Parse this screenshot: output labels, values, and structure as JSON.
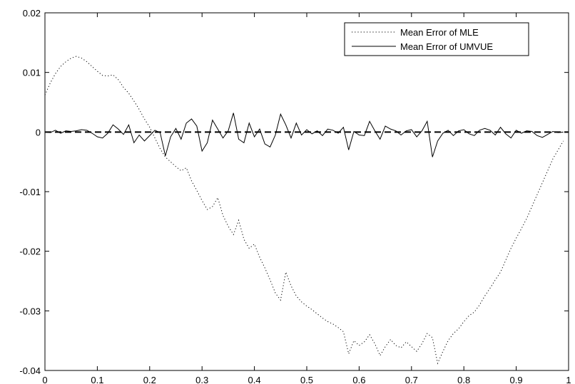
{
  "chart_data": {
    "type": "line",
    "title": "",
    "xlabel": "",
    "ylabel": "",
    "xlim": [
      0,
      1
    ],
    "ylim": [
      -0.04,
      0.02
    ],
    "xticks": [
      0,
      0.1,
      0.2,
      0.3,
      0.4,
      0.5,
      0.6,
      0.7,
      0.8,
      0.9,
      1
    ],
    "xtick_labels": [
      "0",
      "0.1",
      "0.2",
      "0.3",
      "0.4",
      "0.5",
      "0.6",
      "0.7",
      "0.8",
      "0.9",
      "1"
    ],
    "yticks": [
      0.02,
      0.01,
      0,
      -0.01,
      -0.02,
      -0.03,
      -0.04
    ],
    "ytick_labels": [
      "0.02",
      "0.01",
      "0",
      "-0.01",
      "-0.02",
      "-0.03",
      "-0.04"
    ],
    "grid": false,
    "legend_position": "top-right",
    "series": [
      {
        "name": "Mean Error of MLE",
        "style": "dotted",
        "color": "#000000",
        "points": [
          [
            0.0,
            0.0062
          ],
          [
            0.01,
            0.0082
          ],
          [
            0.02,
            0.0098
          ],
          [
            0.03,
            0.011
          ],
          [
            0.04,
            0.0118
          ],
          [
            0.05,
            0.0124
          ],
          [
            0.06,
            0.0127
          ],
          [
            0.07,
            0.0124
          ],
          [
            0.08,
            0.0118
          ],
          [
            0.09,
            0.011
          ],
          [
            0.1,
            0.0102
          ],
          [
            0.11,
            0.0095
          ],
          [
            0.12,
            0.0094
          ],
          [
            0.13,
            0.0096
          ],
          [
            0.14,
            0.0088
          ],
          [
            0.15,
            0.0075
          ],
          [
            0.16,
            0.0065
          ],
          [
            0.17,
            0.0052
          ],
          [
            0.18,
            0.0038
          ],
          [
            0.19,
            0.0022
          ],
          [
            0.2,
            0.0008
          ],
          [
            0.21,
            -0.001
          ],
          [
            0.22,
            -0.0028
          ],
          [
            0.23,
            -0.0042
          ],
          [
            0.24,
            -0.005
          ],
          [
            0.25,
            -0.0058
          ],
          [
            0.26,
            -0.0065
          ],
          [
            0.27,
            -0.006
          ],
          [
            0.28,
            -0.0082
          ],
          [
            0.29,
            -0.0098
          ],
          [
            0.3,
            -0.0115
          ],
          [
            0.31,
            -0.013
          ],
          [
            0.32,
            -0.0125
          ],
          [
            0.33,
            -0.011
          ],
          [
            0.34,
            -0.014
          ],
          [
            0.35,
            -0.0158
          ],
          [
            0.36,
            -0.0172
          ],
          [
            0.37,
            -0.0148
          ],
          [
            0.38,
            -0.018
          ],
          [
            0.39,
            -0.0195
          ],
          [
            0.4,
            -0.0188
          ],
          [
            0.41,
            -0.021
          ],
          [
            0.42,
            -0.0228
          ],
          [
            0.43,
            -0.0248
          ],
          [
            0.44,
            -0.027
          ],
          [
            0.45,
            -0.0282
          ],
          [
            0.46,
            -0.0235
          ],
          [
            0.47,
            -0.0258
          ],
          [
            0.48,
            -0.0275
          ],
          [
            0.49,
            -0.0285
          ],
          [
            0.5,
            -0.0292
          ],
          [
            0.51,
            -0.0298
          ],
          [
            0.52,
            -0.0305
          ],
          [
            0.53,
            -0.0312
          ],
          [
            0.54,
            -0.0318
          ],
          [
            0.55,
            -0.0322
          ],
          [
            0.56,
            -0.0328
          ],
          [
            0.57,
            -0.0335
          ],
          [
            0.58,
            -0.0372
          ],
          [
            0.59,
            -0.035
          ],
          [
            0.6,
            -0.0358
          ],
          [
            0.61,
            -0.0352
          ],
          [
            0.62,
            -0.034
          ],
          [
            0.63,
            -0.0355
          ],
          [
            0.64,
            -0.0375
          ],
          [
            0.65,
            -0.036
          ],
          [
            0.66,
            -0.0348
          ],
          [
            0.67,
            -0.0358
          ],
          [
            0.68,
            -0.0362
          ],
          [
            0.69,
            -0.0352
          ],
          [
            0.7,
            -0.036
          ],
          [
            0.71,
            -0.0368
          ],
          [
            0.72,
            -0.0355
          ],
          [
            0.73,
            -0.0338
          ],
          [
            0.74,
            -0.0345
          ],
          [
            0.75,
            -0.0388
          ],
          [
            0.76,
            -0.0368
          ],
          [
            0.77,
            -0.035
          ],
          [
            0.78,
            -0.0338
          ],
          [
            0.79,
            -0.033
          ],
          [
            0.8,
            -0.0318
          ],
          [
            0.81,
            -0.0308
          ],
          [
            0.82,
            -0.0302
          ],
          [
            0.83,
            -0.029
          ],
          [
            0.84,
            -0.0275
          ],
          [
            0.85,
            -0.0262
          ],
          [
            0.86,
            -0.0248
          ],
          [
            0.87,
            -0.0235
          ],
          [
            0.88,
            -0.0215
          ],
          [
            0.89,
            -0.0195
          ],
          [
            0.9,
            -0.0178
          ],
          [
            0.91,
            -0.0162
          ],
          [
            0.92,
            -0.0145
          ],
          [
            0.93,
            -0.0125
          ],
          [
            0.94,
            -0.0105
          ],
          [
            0.95,
            -0.0085
          ],
          [
            0.96,
            -0.0065
          ],
          [
            0.97,
            -0.0045
          ],
          [
            0.98,
            -0.003
          ],
          [
            0.99,
            -0.0015
          ]
        ]
      },
      {
        "name": "Mean Error of UMVUE",
        "style": "solid",
        "color": "#000000",
        "points": [
          [
            0.0,
            0.0
          ],
          [
            0.01,
            -0.0001
          ],
          [
            0.02,
            0.0003
          ],
          [
            0.03,
            -0.0002
          ],
          [
            0.04,
            0.0002
          ],
          [
            0.05,
            0.0001
          ],
          [
            0.06,
            0.0002
          ],
          [
            0.07,
            0.0004
          ],
          [
            0.08,
            0.0003
          ],
          [
            0.09,
            -0.0002
          ],
          [
            0.1,
            -0.0008
          ],
          [
            0.11,
            -0.001
          ],
          [
            0.12,
            -0.0002
          ],
          [
            0.13,
            0.0012
          ],
          [
            0.14,
            0.0005
          ],
          [
            0.15,
            -0.0004
          ],
          [
            0.16,
            0.0012
          ],
          [
            0.17,
            -0.0018
          ],
          [
            0.18,
            -0.0005
          ],
          [
            0.19,
            -0.0015
          ],
          [
            0.2,
            -0.0006
          ],
          [
            0.21,
            0.0003
          ],
          [
            0.22,
            -0.0001
          ],
          [
            0.23,
            -0.004
          ],
          [
            0.24,
            -0.0008
          ],
          [
            0.25,
            0.0006
          ],
          [
            0.26,
            -0.0012
          ],
          [
            0.27,
            0.0015
          ],
          [
            0.28,
            0.0022
          ],
          [
            0.29,
            0.001
          ],
          [
            0.3,
            -0.0032
          ],
          [
            0.31,
            -0.0018
          ],
          [
            0.32,
            0.002
          ],
          [
            0.33,
            0.0005
          ],
          [
            0.34,
            -0.001
          ],
          [
            0.35,
            0.0002
          ],
          [
            0.36,
            0.0032
          ],
          [
            0.37,
            -0.0012
          ],
          [
            0.38,
            -0.0018
          ],
          [
            0.39,
            0.0015
          ],
          [
            0.4,
            -0.0008
          ],
          [
            0.41,
            0.0005
          ],
          [
            0.42,
            -0.002
          ],
          [
            0.43,
            -0.0025
          ],
          [
            0.44,
            -0.0005
          ],
          [
            0.45,
            0.003
          ],
          [
            0.46,
            0.0012
          ],
          [
            0.47,
            -0.001
          ],
          [
            0.48,
            0.0015
          ],
          [
            0.49,
            -0.0005
          ],
          [
            0.5,
            0.0004
          ],
          [
            0.51,
            -0.0003
          ],
          [
            0.52,
            0.0002
          ],
          [
            0.53,
            -0.0006
          ],
          [
            0.54,
            0.0005
          ],
          [
            0.55,
            0.0003
          ],
          [
            0.56,
            -0.0002
          ],
          [
            0.57,
            0.0008
          ],
          [
            0.58,
            -0.003
          ],
          [
            0.59,
            0.0001
          ],
          [
            0.6,
            -0.0005
          ],
          [
            0.61,
            -0.0006
          ],
          [
            0.62,
            0.0018
          ],
          [
            0.63,
            0.0002
          ],
          [
            0.64,
            -0.0012
          ],
          [
            0.65,
            0.001
          ],
          [
            0.66,
            0.0005
          ],
          [
            0.67,
            0.0002
          ],
          [
            0.68,
            -0.0005
          ],
          [
            0.69,
            0.0002
          ],
          [
            0.7,
            0.0004
          ],
          [
            0.71,
            -0.0008
          ],
          [
            0.72,
            0.0002
          ],
          [
            0.73,
            0.0018
          ],
          [
            0.74,
            -0.0042
          ],
          [
            0.75,
            -0.0015
          ],
          [
            0.76,
            -0.0002
          ],
          [
            0.77,
            0.0003
          ],
          [
            0.78,
            -0.0006
          ],
          [
            0.79,
            0.0002
          ],
          [
            0.8,
            0.0004
          ],
          [
            0.81,
            -0.0003
          ],
          [
            0.82,
            -0.0006
          ],
          [
            0.83,
            0.0003
          ],
          [
            0.84,
            0.0006
          ],
          [
            0.85,
            0.0003
          ],
          [
            0.86,
            -0.0005
          ],
          [
            0.87,
            0.0008
          ],
          [
            0.88,
            -0.0003
          ],
          [
            0.89,
            -0.001
          ],
          [
            0.9,
            0.0003
          ],
          [
            0.91,
            -0.0002
          ],
          [
            0.92,
            0.0002
          ],
          [
            0.93,
            0.0001
          ],
          [
            0.94,
            -0.0006
          ],
          [
            0.95,
            -0.0009
          ],
          [
            0.96,
            -0.0004
          ],
          [
            0.97,
            0.0001
          ],
          [
            0.98,
            -0.0001
          ],
          [
            0.99,
            0.0
          ]
        ]
      },
      {
        "name": "",
        "style": "dashed",
        "color": "#000000",
        "points": [
          [
            0,
            0
          ],
          [
            1,
            0
          ]
        ]
      }
    ]
  }
}
